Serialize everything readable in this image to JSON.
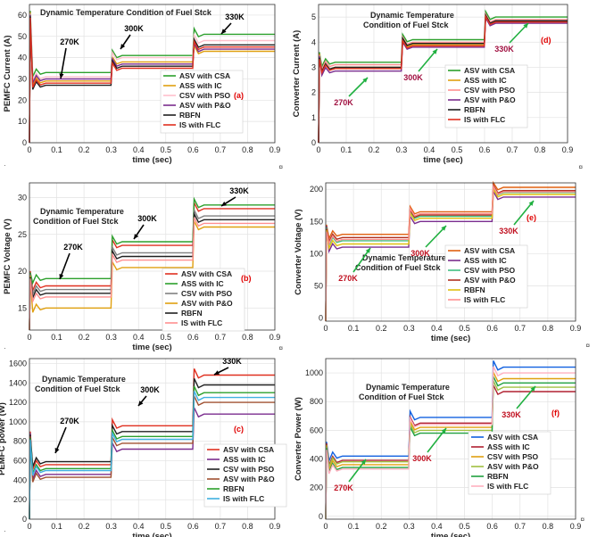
{
  "chart_data": [
    {
      "id": "a",
      "type": "line",
      "panel_label": "(a)",
      "title": "Dynamic Temperature Condition of Fuel Stck",
      "xlabel": "time (sec)",
      "ylabel": "PEMFC Current (A)",
      "xlim": [
        0,
        0.9
      ],
      "ylim": [
        0,
        65
      ],
      "xticks": [
        "0",
        "0.1",
        "0.2",
        "0.3",
        "0.4",
        "0.5",
        "0.6",
        "0.7",
        "0.8",
        "0.9"
      ],
      "yticks": [
        "0",
        "10",
        "20",
        "30",
        "40",
        "50",
        "60"
      ],
      "step_times": [
        0.3,
        0.6
      ],
      "initial_peak": 62,
      "series": [
        {
          "name": "ASV with CSA",
          "color": "#2ca02c",
          "values": [
            33,
            41,
            51
          ]
        },
        {
          "name": "ASS with IC",
          "color": "#e0a010",
          "values": [
            29,
            38,
            43
          ]
        },
        {
          "name": "CSV with PSO",
          "color": "#ffc0cb",
          "values": [
            31,
            40,
            48
          ]
        },
        {
          "name": "ASV with P&O",
          "color": "#7b2d8e",
          "values": [
            30,
            37,
            44
          ]
        },
        {
          "name": "RBFN",
          "color": "#202020",
          "values": [
            27,
            36,
            46
          ]
        },
        {
          "name": "IS with FLC",
          "color": "#e03020",
          "values": [
            28,
            35,
            45
          ]
        }
      ],
      "annotations": [
        {
          "text": "270K",
          "color": "#000000"
        },
        {
          "text": "300K",
          "color": "#000000"
        },
        {
          "text": "330K",
          "color": "#000000"
        }
      ]
    },
    {
      "id": "d",
      "type": "line",
      "panel_label": "(d)",
      "title": "Dynamic Temperature Condition of Fuel Stck",
      "xlabel": "time (sec)",
      "ylabel": "Converter Current (A)",
      "xlim": [
        0,
        0.9
      ],
      "ylim": [
        0,
        5.5
      ],
      "xticks": [
        "0",
        "0.1",
        "0.2",
        "0.3",
        "0.4",
        "0.5",
        "0.6",
        "0.7",
        "0.8",
        "0.9"
      ],
      "yticks": [
        "0",
        "1",
        "2",
        "3",
        "4",
        "5"
      ],
      "step_times": [
        0.3,
        0.6
      ],
      "initial_peak": 3.6,
      "series": [
        {
          "name": "ASV with CSA",
          "color": "#2ca02c",
          "values": [
            3.2,
            4.1,
            5.0
          ]
        },
        {
          "name": "ASS with IC",
          "color": "#e0a010",
          "values": [
            3.0,
            3.9,
            4.8
          ]
        },
        {
          "name": "CSV with PSO",
          "color": "#ff9090",
          "values": [
            3.1,
            4.0,
            4.9
          ]
        },
        {
          "name": "ASV with P&O",
          "color": "#7b2d8e",
          "values": [
            2.85,
            3.8,
            4.75
          ]
        },
        {
          "name": "RBFN",
          "color": "#202020",
          "values": [
            3.0,
            3.95,
            4.85
          ]
        },
        {
          "name": "IS with FLC",
          "color": "#e03020",
          "values": [
            2.95,
            3.85,
            4.8
          ]
        }
      ],
      "annotations": [
        {
          "text": "270K",
          "color": "#a01040"
        },
        {
          "text": "300K",
          "color": "#a01040"
        },
        {
          "text": "330K",
          "color": "#a01040"
        }
      ]
    },
    {
      "id": "b",
      "type": "line",
      "panel_label": "(b)",
      "title": "Dynamic Temperature Condition of Fuel Stck",
      "xlabel": "time (sec)",
      "ylabel": "PEMFC Voltage (V)",
      "xlim": [
        0,
        0.9
      ],
      "ylim": [
        12,
        32
      ],
      "xticks": [
        "0",
        "0.1",
        "0.2",
        "0.3",
        "0.4",
        "0.5",
        "0.6",
        "0.7",
        "0.8",
        "0.9"
      ],
      "yticks": [
        "15",
        "20",
        "25",
        "30"
      ],
      "step_times": [
        0.3,
        0.6
      ],
      "initial_peak": 20,
      "series": [
        {
          "name": "ASV with CSA",
          "color": "#e03020",
          "values": [
            18,
            23.5,
            28.5
          ]
        },
        {
          "name": "ASS with IC",
          "color": "#2ca02c",
          "values": [
            19,
            24,
            29
          ]
        },
        {
          "name": "CSV with PSO",
          "color": "#808080",
          "values": [
            17.5,
            22.5,
            27.5
          ]
        },
        {
          "name": "ASV with P&O",
          "color": "#e0a010",
          "values": [
            15,
            20.5,
            26
          ]
        },
        {
          "name": "RBFN",
          "color": "#202020",
          "values": [
            17,
            22,
            27
          ]
        },
        {
          "name": "IS with FLC",
          "color": "#ff9090",
          "values": [
            16.5,
            21.5,
            26.5
          ]
        }
      ],
      "annotations": [
        {
          "text": "270K",
          "color": "#000000"
        },
        {
          "text": "300K",
          "color": "#000000"
        },
        {
          "text": "330K",
          "color": "#000000"
        }
      ]
    },
    {
      "id": "e",
      "type": "line",
      "panel_label": "(e)",
      "title": "Dynamic Temperature Condition of Fuel Stck",
      "xlabel": "time (sec)",
      "ylabel": "Converter Voltage (V)",
      "xlim": [
        0,
        0.9
      ],
      "ylim": [
        -5,
        210
      ],
      "xticks": [
        "0",
        "0.1",
        "0.2",
        "0.3",
        "0.4",
        "0.5",
        "0.6",
        "0.7",
        "0.8",
        "0.9"
      ],
      "yticks": [
        "0",
        "50",
        "100",
        "150",
        "200"
      ],
      "step_times": [
        0.3,
        0.6
      ],
      "initial_peak": 145,
      "series": [
        {
          "name": "ASV with CSA",
          "color": "#e06010",
          "values": [
            130,
            165,
            203
          ]
        },
        {
          "name": "ASS with IC",
          "color": "#7b2d8e",
          "values": [
            110,
            150,
            188
          ]
        },
        {
          "name": "CSV with PSO",
          "color": "#40c080",
          "values": [
            120,
            158,
            195
          ]
        },
        {
          "name": "ASV with P&O",
          "color": "#b03020",
          "values": [
            125,
            160,
            198
          ]
        },
        {
          "name": "RBFN",
          "color": "#e0c010",
          "values": [
            115,
            155,
            192
          ]
        },
        {
          "name": "IS with FLC",
          "color": "#ff9090",
          "values": [
            122,
            162,
            196
          ]
        }
      ],
      "annotations": [
        {
          "text": "270K",
          "color": "#c01020"
        },
        {
          "text": "300K",
          "color": "#c01020"
        },
        {
          "text": "330K",
          "color": "#c01020"
        }
      ]
    },
    {
      "id": "c",
      "type": "line",
      "panel_label": "(c)",
      "title": "Dynamic Temperature Condition of Fuel Stck",
      "xlabel": "time (sec)",
      "ylabel": "PEMFC power (W)",
      "xlim": [
        0,
        0.9
      ],
      "ylim": [
        0,
        1650
      ],
      "xticks": [
        "0",
        "0.1",
        "0.2",
        "0.3",
        "0.4",
        "0.5",
        "0.6",
        "0.7",
        "0.8",
        "0.9"
      ],
      "yticks": [
        "0",
        "200",
        "400",
        "600",
        "800",
        "1000",
        "1200",
        "1400",
        "1600"
      ],
      "step_times": [
        0.3,
        0.6
      ],
      "initial_peak": 900,
      "series": [
        {
          "name": "ASV with CSA",
          "color": "#e03020",
          "values": [
            560,
            960,
            1480
          ]
        },
        {
          "name": "ASS with IC",
          "color": "#7b2d8e",
          "values": [
            460,
            720,
            1080
          ]
        },
        {
          "name": "CSV with PSO",
          "color": "#202020",
          "values": [
            590,
            900,
            1380
          ]
        },
        {
          "name": "ASV with P&O",
          "color": "#a05030",
          "values": [
            430,
            780,
            1200
          ]
        },
        {
          "name": "RBFN",
          "color": "#2ca02c",
          "values": [
            520,
            850,
            1300
          ]
        },
        {
          "name": "IS with FLC",
          "color": "#40b0e0",
          "values": [
            500,
            820,
            1250
          ]
        }
      ],
      "annotations": [
        {
          "text": "270K",
          "color": "#000000"
        },
        {
          "text": "300K",
          "color": "#000000"
        },
        {
          "text": "330K",
          "color": "#000000"
        }
      ]
    },
    {
      "id": "f",
      "type": "line",
      "panel_label": "(f)",
      "title": "Dynamic Temperature Condition of Fuel Stck",
      "xlabel": "time (sec)",
      "ylabel": "Converter Power (W)",
      "xlim": [
        0,
        0.9
      ],
      "ylim": [
        -20,
        1100
      ],
      "xticks": [
        "0",
        "0.1",
        "0.2",
        "0.3",
        "0.4",
        "0.5",
        "0.6",
        "0.7",
        "0.8",
        "0.9"
      ],
      "yticks": [
        "0",
        "200",
        "400",
        "600",
        "800",
        "1000"
      ],
      "step_times": [
        0.3,
        0.6
      ],
      "initial_peak": 520,
      "series": [
        {
          "name": "ASV with CSA",
          "color": "#1060e0",
          "values": [
            420,
            690,
            1040
          ]
        },
        {
          "name": "ASS with IC",
          "color": "#b02030",
          "values": [
            390,
            650,
            870
          ]
        },
        {
          "name": "CSV with PSO",
          "color": "#e0a010",
          "values": [
            360,
            620,
            960
          ]
        },
        {
          "name": "ASV with P&O",
          "color": "#a0c040",
          "values": [
            380,
            600,
            900
          ]
        },
        {
          "name": "RBFN",
          "color": "#20a040",
          "values": [
            340,
            580,
            930
          ]
        },
        {
          "name": "IS with FLC",
          "color": "#ffb0c0",
          "values": [
            330,
            640,
            1000
          ]
        }
      ],
      "annotations": [
        {
          "text": "270K",
          "color": "#c01020"
        },
        {
          "text": "300K",
          "color": "#c01020"
        },
        {
          "text": "330K",
          "color": "#c01020"
        }
      ]
    }
  ],
  "side_marks": {
    "right_glyph": "¤",
    "left_glyph": "·"
  }
}
